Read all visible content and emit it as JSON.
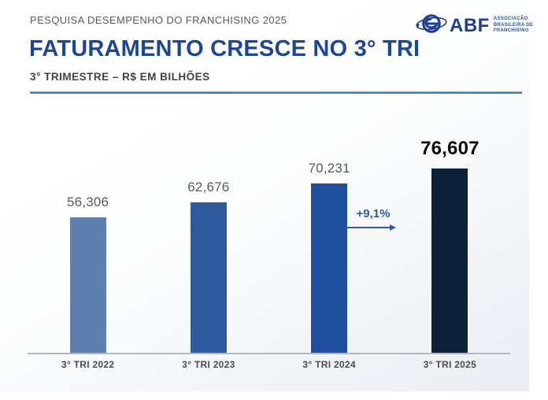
{
  "header": {
    "kicker": "PESQUISA DESEMPENHO DO FRANCHISING 2025",
    "title": "FATURAMENTO CRESCE NO 3° TRI",
    "subtitle": "3° TRIMESTRE – R$ EM BILHÕES",
    "title_color": "#1d4795",
    "divider_color": "#4f74ab"
  },
  "logo": {
    "abbr": "ABF",
    "line1": "ASSOCIAÇÃO",
    "line2": "BRASILEIRA DE",
    "line3": "FRANCHISING",
    "color": "#1e3f8f"
  },
  "chart_data": {
    "type": "bar",
    "title": "FATURAMENTO CRESCE NO 3° TRI",
    "subtitle": "3° TRIMESTRE – R$ EM BILHÕES",
    "unit": "R$ em bilhões",
    "categories": [
      "3° TRI 2022",
      "3° TRI 2023",
      "3° TRI 2024",
      "3° TRI 2025"
    ],
    "values": [
      56.306,
      62.676,
      70.231,
      76.607
    ],
    "value_labels": [
      "56,306",
      "62,676",
      "70,231",
      "76,607"
    ],
    "bar_colors": [
      "#5c80b0",
      "#2e5a9e",
      "#204f9e",
      "#0e1f38"
    ],
    "highlight_index": 3,
    "ylim": [
      0,
      76.607
    ],
    "grid": false,
    "legend": "none",
    "annotation": {
      "label": "+9,1%",
      "from_category": "3° TRI 2024",
      "to_category": "3° TRI 2025",
      "color": "#2a5caa"
    }
  }
}
